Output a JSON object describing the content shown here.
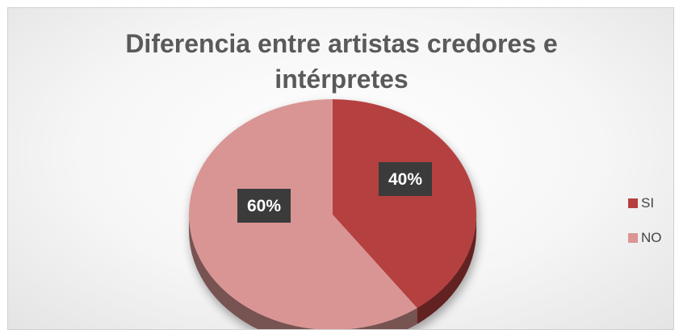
{
  "chart_data": {
    "type": "pie",
    "title": "Diferencia entre artistas credores e intérpretes",
    "title_lines": [
      "Diferencia entre artistas credores e",
      "intérpretes"
    ],
    "categories": [
      "SI",
      "NO"
    ],
    "values": [
      40,
      60
    ],
    "data_labels": [
      "40%",
      "60%"
    ],
    "colors": [
      "#b5403f",
      "#d99594"
    ],
    "legend_position": "right",
    "style": "3d-pie"
  }
}
